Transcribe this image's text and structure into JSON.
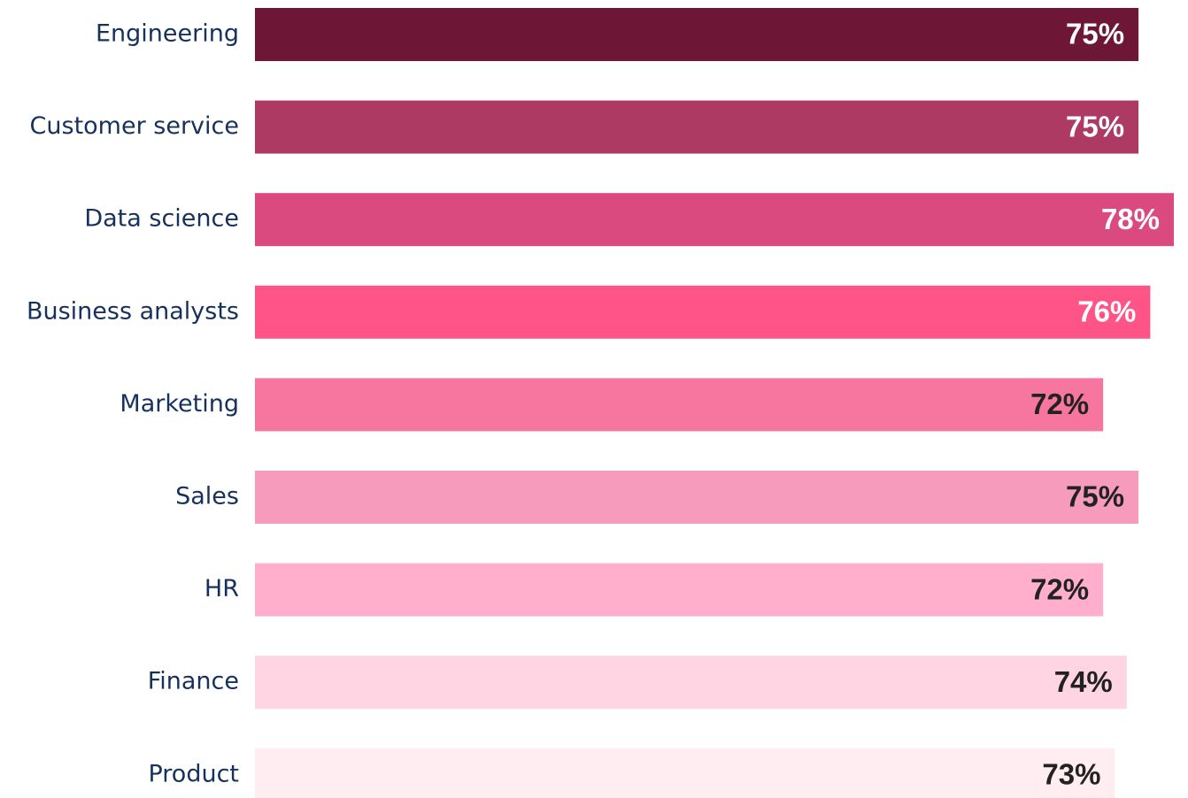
{
  "chart_data": {
    "type": "bar",
    "orientation": "horizontal",
    "categories": [
      "Engineering",
      "Customer service",
      "Data science",
      "Business analysts",
      "Marketing",
      "Sales",
      "HR",
      "Finance",
      "Product"
    ],
    "values": [
      75,
      75,
      78,
      76,
      72,
      75,
      72,
      74,
      73
    ],
    "value_labels": [
      "75%",
      "75%",
      "78%",
      "76%",
      "72%",
      "75%",
      "72%",
      "74%",
      "73%"
    ],
    "colors": [
      "#6d1636",
      "#ad3a62",
      "#db4a7e",
      "#ff5488",
      "#f776a0",
      "#f79bbd",
      "#ffafcb",
      "#ffd5e4",
      "#ffedf2"
    ],
    "label_colors": [
      "#ffffff",
      "#ffffff",
      "#ffffff",
      "#ffffff",
      "#222222",
      "#222222",
      "#222222",
      "#222222",
      "#222222"
    ],
    "xlim": [
      0,
      78
    ]
  }
}
